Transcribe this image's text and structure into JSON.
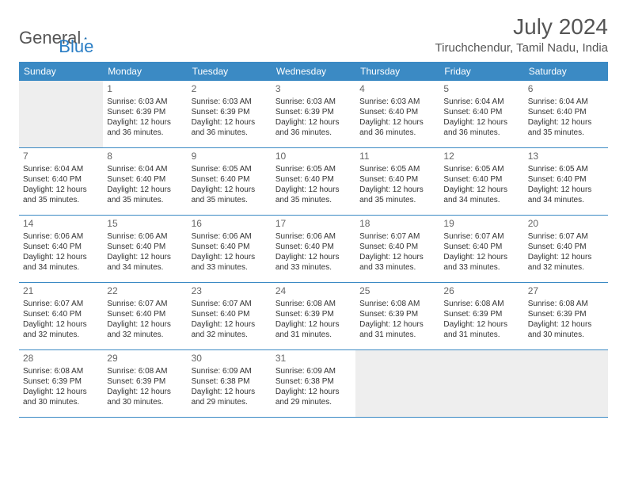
{
  "brand": {
    "word1": "General",
    "word2": "Blue"
  },
  "header": {
    "month_title": "July 2024",
    "location": "Tiruchchendur, Tamil Nadu, India"
  },
  "colors": {
    "header_bg": "#3b8ac4",
    "header_text": "#ffffff",
    "rule": "#3b8ac4",
    "empty_bg": "#eeeeee",
    "text": "#333333",
    "title_text": "#555555",
    "brand_blue": "#2a7ec5"
  },
  "weekdays": [
    "Sunday",
    "Monday",
    "Tuesday",
    "Wednesday",
    "Thursday",
    "Friday",
    "Saturday"
  ],
  "weeks": [
    [
      {
        "empty": true
      },
      {
        "day": "1",
        "sunrise": "Sunrise: 6:03 AM",
        "sunset": "Sunset: 6:39 PM",
        "daylight1": "Daylight: 12 hours",
        "daylight2": "and 36 minutes."
      },
      {
        "day": "2",
        "sunrise": "Sunrise: 6:03 AM",
        "sunset": "Sunset: 6:39 PM",
        "daylight1": "Daylight: 12 hours",
        "daylight2": "and 36 minutes."
      },
      {
        "day": "3",
        "sunrise": "Sunrise: 6:03 AM",
        "sunset": "Sunset: 6:39 PM",
        "daylight1": "Daylight: 12 hours",
        "daylight2": "and 36 minutes."
      },
      {
        "day": "4",
        "sunrise": "Sunrise: 6:03 AM",
        "sunset": "Sunset: 6:40 PM",
        "daylight1": "Daylight: 12 hours",
        "daylight2": "and 36 minutes."
      },
      {
        "day": "5",
        "sunrise": "Sunrise: 6:04 AM",
        "sunset": "Sunset: 6:40 PM",
        "daylight1": "Daylight: 12 hours",
        "daylight2": "and 36 minutes."
      },
      {
        "day": "6",
        "sunrise": "Sunrise: 6:04 AM",
        "sunset": "Sunset: 6:40 PM",
        "daylight1": "Daylight: 12 hours",
        "daylight2": "and 35 minutes."
      }
    ],
    [
      {
        "day": "7",
        "sunrise": "Sunrise: 6:04 AM",
        "sunset": "Sunset: 6:40 PM",
        "daylight1": "Daylight: 12 hours",
        "daylight2": "and 35 minutes."
      },
      {
        "day": "8",
        "sunrise": "Sunrise: 6:04 AM",
        "sunset": "Sunset: 6:40 PM",
        "daylight1": "Daylight: 12 hours",
        "daylight2": "and 35 minutes."
      },
      {
        "day": "9",
        "sunrise": "Sunrise: 6:05 AM",
        "sunset": "Sunset: 6:40 PM",
        "daylight1": "Daylight: 12 hours",
        "daylight2": "and 35 minutes."
      },
      {
        "day": "10",
        "sunrise": "Sunrise: 6:05 AM",
        "sunset": "Sunset: 6:40 PM",
        "daylight1": "Daylight: 12 hours",
        "daylight2": "and 35 minutes."
      },
      {
        "day": "11",
        "sunrise": "Sunrise: 6:05 AM",
        "sunset": "Sunset: 6:40 PM",
        "daylight1": "Daylight: 12 hours",
        "daylight2": "and 35 minutes."
      },
      {
        "day": "12",
        "sunrise": "Sunrise: 6:05 AM",
        "sunset": "Sunset: 6:40 PM",
        "daylight1": "Daylight: 12 hours",
        "daylight2": "and 34 minutes."
      },
      {
        "day": "13",
        "sunrise": "Sunrise: 6:05 AM",
        "sunset": "Sunset: 6:40 PM",
        "daylight1": "Daylight: 12 hours",
        "daylight2": "and 34 minutes."
      }
    ],
    [
      {
        "day": "14",
        "sunrise": "Sunrise: 6:06 AM",
        "sunset": "Sunset: 6:40 PM",
        "daylight1": "Daylight: 12 hours",
        "daylight2": "and 34 minutes."
      },
      {
        "day": "15",
        "sunrise": "Sunrise: 6:06 AM",
        "sunset": "Sunset: 6:40 PM",
        "daylight1": "Daylight: 12 hours",
        "daylight2": "and 34 minutes."
      },
      {
        "day": "16",
        "sunrise": "Sunrise: 6:06 AM",
        "sunset": "Sunset: 6:40 PM",
        "daylight1": "Daylight: 12 hours",
        "daylight2": "and 33 minutes."
      },
      {
        "day": "17",
        "sunrise": "Sunrise: 6:06 AM",
        "sunset": "Sunset: 6:40 PM",
        "daylight1": "Daylight: 12 hours",
        "daylight2": "and 33 minutes."
      },
      {
        "day": "18",
        "sunrise": "Sunrise: 6:07 AM",
        "sunset": "Sunset: 6:40 PM",
        "daylight1": "Daylight: 12 hours",
        "daylight2": "and 33 minutes."
      },
      {
        "day": "19",
        "sunrise": "Sunrise: 6:07 AM",
        "sunset": "Sunset: 6:40 PM",
        "daylight1": "Daylight: 12 hours",
        "daylight2": "and 33 minutes."
      },
      {
        "day": "20",
        "sunrise": "Sunrise: 6:07 AM",
        "sunset": "Sunset: 6:40 PM",
        "daylight1": "Daylight: 12 hours",
        "daylight2": "and 32 minutes."
      }
    ],
    [
      {
        "day": "21",
        "sunrise": "Sunrise: 6:07 AM",
        "sunset": "Sunset: 6:40 PM",
        "daylight1": "Daylight: 12 hours",
        "daylight2": "and 32 minutes."
      },
      {
        "day": "22",
        "sunrise": "Sunrise: 6:07 AM",
        "sunset": "Sunset: 6:40 PM",
        "daylight1": "Daylight: 12 hours",
        "daylight2": "and 32 minutes."
      },
      {
        "day": "23",
        "sunrise": "Sunrise: 6:07 AM",
        "sunset": "Sunset: 6:40 PM",
        "daylight1": "Daylight: 12 hours",
        "daylight2": "and 32 minutes."
      },
      {
        "day": "24",
        "sunrise": "Sunrise: 6:08 AM",
        "sunset": "Sunset: 6:39 PM",
        "daylight1": "Daylight: 12 hours",
        "daylight2": "and 31 minutes."
      },
      {
        "day": "25",
        "sunrise": "Sunrise: 6:08 AM",
        "sunset": "Sunset: 6:39 PM",
        "daylight1": "Daylight: 12 hours",
        "daylight2": "and 31 minutes."
      },
      {
        "day": "26",
        "sunrise": "Sunrise: 6:08 AM",
        "sunset": "Sunset: 6:39 PM",
        "daylight1": "Daylight: 12 hours",
        "daylight2": "and 31 minutes."
      },
      {
        "day": "27",
        "sunrise": "Sunrise: 6:08 AM",
        "sunset": "Sunset: 6:39 PM",
        "daylight1": "Daylight: 12 hours",
        "daylight2": "and 30 minutes."
      }
    ],
    [
      {
        "day": "28",
        "sunrise": "Sunrise: 6:08 AM",
        "sunset": "Sunset: 6:39 PM",
        "daylight1": "Daylight: 12 hours",
        "daylight2": "and 30 minutes."
      },
      {
        "day": "29",
        "sunrise": "Sunrise: 6:08 AM",
        "sunset": "Sunset: 6:39 PM",
        "daylight1": "Daylight: 12 hours",
        "daylight2": "and 30 minutes."
      },
      {
        "day": "30",
        "sunrise": "Sunrise: 6:09 AM",
        "sunset": "Sunset: 6:38 PM",
        "daylight1": "Daylight: 12 hours",
        "daylight2": "and 29 minutes."
      },
      {
        "day": "31",
        "sunrise": "Sunrise: 6:09 AM",
        "sunset": "Sunset: 6:38 PM",
        "daylight1": "Daylight: 12 hours",
        "daylight2": "and 29 minutes."
      },
      {
        "empty": true
      },
      {
        "empty": true
      },
      {
        "empty": true
      }
    ]
  ]
}
